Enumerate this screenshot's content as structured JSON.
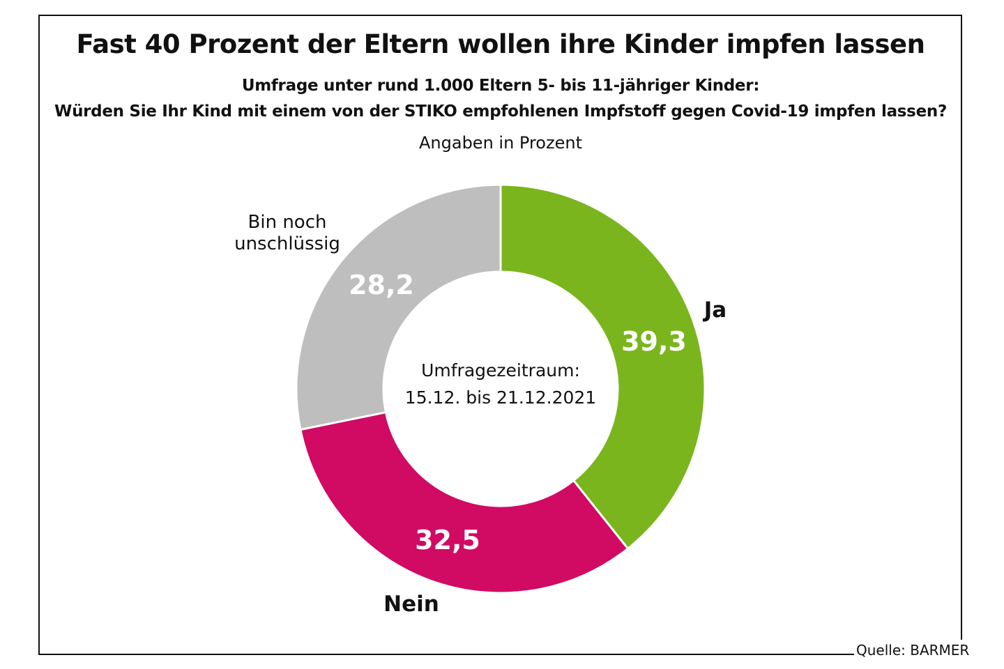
{
  "chart_data": {
    "type": "pie",
    "variant": "donut",
    "title": "Fast 40 Prozent der Eltern wollen ihre Kinder impfen lassen",
    "subtitle": [
      "Umfrage unter rund 1.000 Eltern 5- bis 11-jähriger Kinder:",
      "Würden Sie Ihr Kind mit einem von der STIKO empfohlenen Impfstoff gegen Covid-19 impfen lassen?"
    ],
    "unit_note": "Angaben in Prozent",
    "center_text": [
      "Umfragezeitraum:",
      "15.12. bis 21.12.2021"
    ],
    "slices": [
      {
        "label": "Ja",
        "value": 39.3,
        "value_label": "39,3",
        "color": "#7ab51d"
      },
      {
        "label": "Nein",
        "value": 32.5,
        "value_label": "32,5",
        "color": "#d10a64"
      },
      {
        "label": "Bin noch unschlüssig",
        "label_lines": [
          "Bin noch",
          "unschlüssig"
        ],
        "value": 28.2,
        "value_label": "28,2",
        "color": "#bdbebd"
      }
    ],
    "start": "top",
    "direction": "clockwise",
    "source": "Quelle: BARMER"
  }
}
